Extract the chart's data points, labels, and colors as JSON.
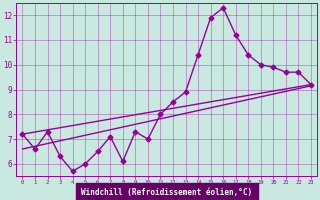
{
  "xlabel": "Windchill (Refroidissement éolien,°C)",
  "xlim": [
    -0.5,
    23.5
  ],
  "ylim": [
    5.5,
    12.5
  ],
  "xticks": [
    0,
    1,
    2,
    3,
    4,
    5,
    6,
    7,
    8,
    9,
    10,
    11,
    12,
    13,
    14,
    15,
    16,
    17,
    18,
    19,
    20,
    21,
    22,
    23
  ],
  "yticks": [
    6,
    7,
    8,
    9,
    10,
    11,
    12
  ],
  "bg_color": "#c8e8e0",
  "plot_bg": "#c8e8e0",
  "line_color": "#990099",
  "xlabel_bg": "#660066",
  "xlabel_fg": "#ffffff",
  "line1_x": [
    0,
    1,
    2,
    3,
    4,
    5,
    6,
    7,
    8,
    9,
    10,
    11,
    12,
    13,
    14,
    15,
    16,
    17,
    18,
    19,
    20,
    21,
    22,
    23
  ],
  "line1_y": [
    7.2,
    6.6,
    7.3,
    6.3,
    5.7,
    6.0,
    6.5,
    7.1,
    6.1,
    7.3,
    7.0,
    8.0,
    8.5,
    8.9,
    10.4,
    11.9,
    12.3,
    11.2,
    10.4,
    10.0,
    9.9,
    9.7,
    9.7,
    9.2
  ],
  "line2_x": [
    0,
    23
  ],
  "line2_y": [
    7.2,
    9.2
  ],
  "line3_x": [
    0,
    23
  ],
  "line3_y": [
    6.6,
    9.15
  ]
}
